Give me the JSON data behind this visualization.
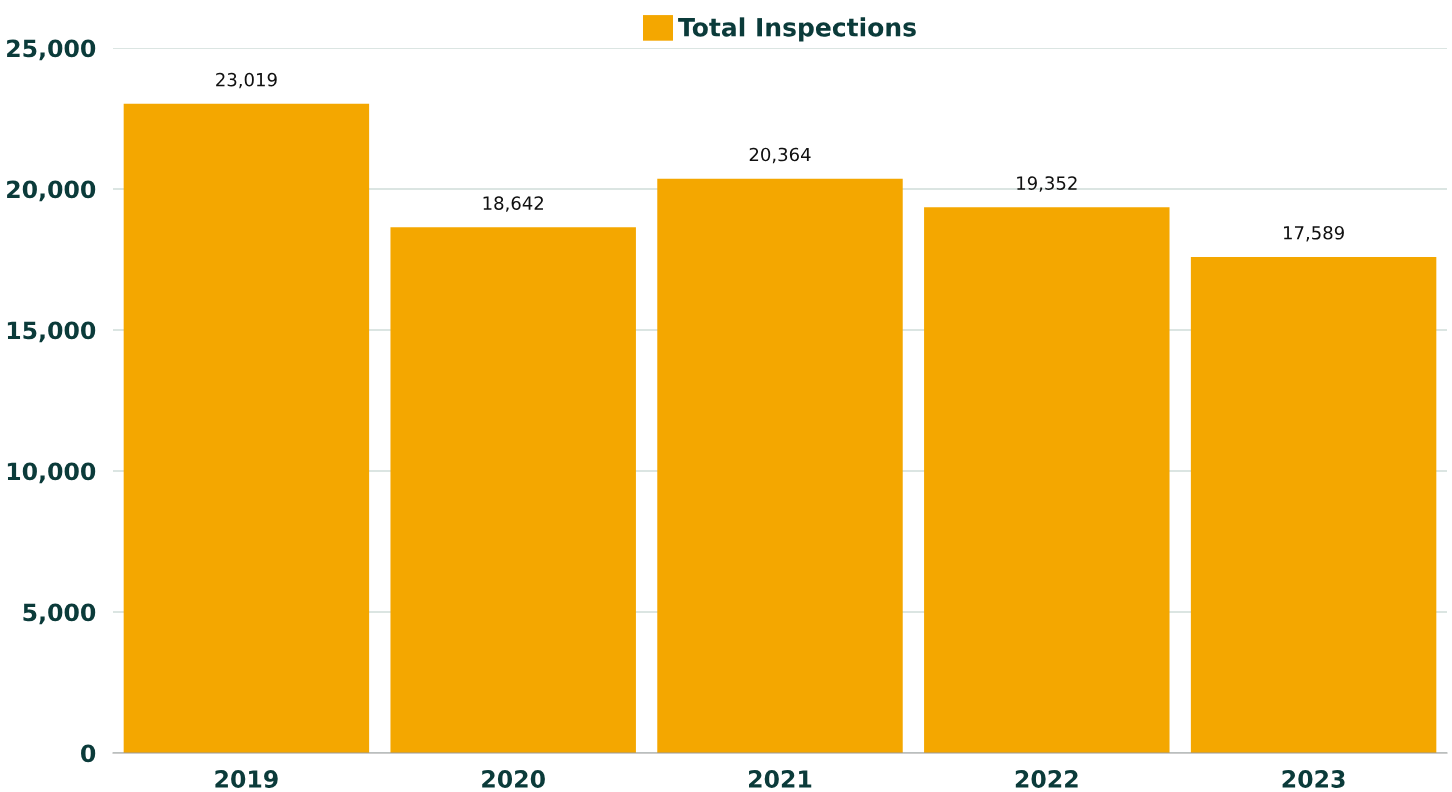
{
  "chart_data": {
    "type": "bar",
    "categories": [
      "2019",
      "2020",
      "2021",
      "2022",
      "2023"
    ],
    "series": [
      {
        "name": "Total Inspections",
        "color": "#f4a700",
        "values": [
          23019,
          18642,
          20364,
          19352,
          17589
        ],
        "value_labels": [
          "23,019",
          "18,642",
          "20,364",
          "19,352",
          "17,589"
        ]
      }
    ],
    "ylim": [
      0,
      25000
    ],
    "yticks": [
      {
        "value": 0,
        "label": "0"
      },
      {
        "value": 5000,
        "label": "5,000"
      },
      {
        "value": 10000,
        "label": "10,000"
      },
      {
        "value": 15000,
        "label": "15,000"
      },
      {
        "value": 20000,
        "label": "20,000"
      },
      {
        "value": 25000,
        "label": "25,000"
      }
    ],
    "grid": "y",
    "legend": "top"
  }
}
